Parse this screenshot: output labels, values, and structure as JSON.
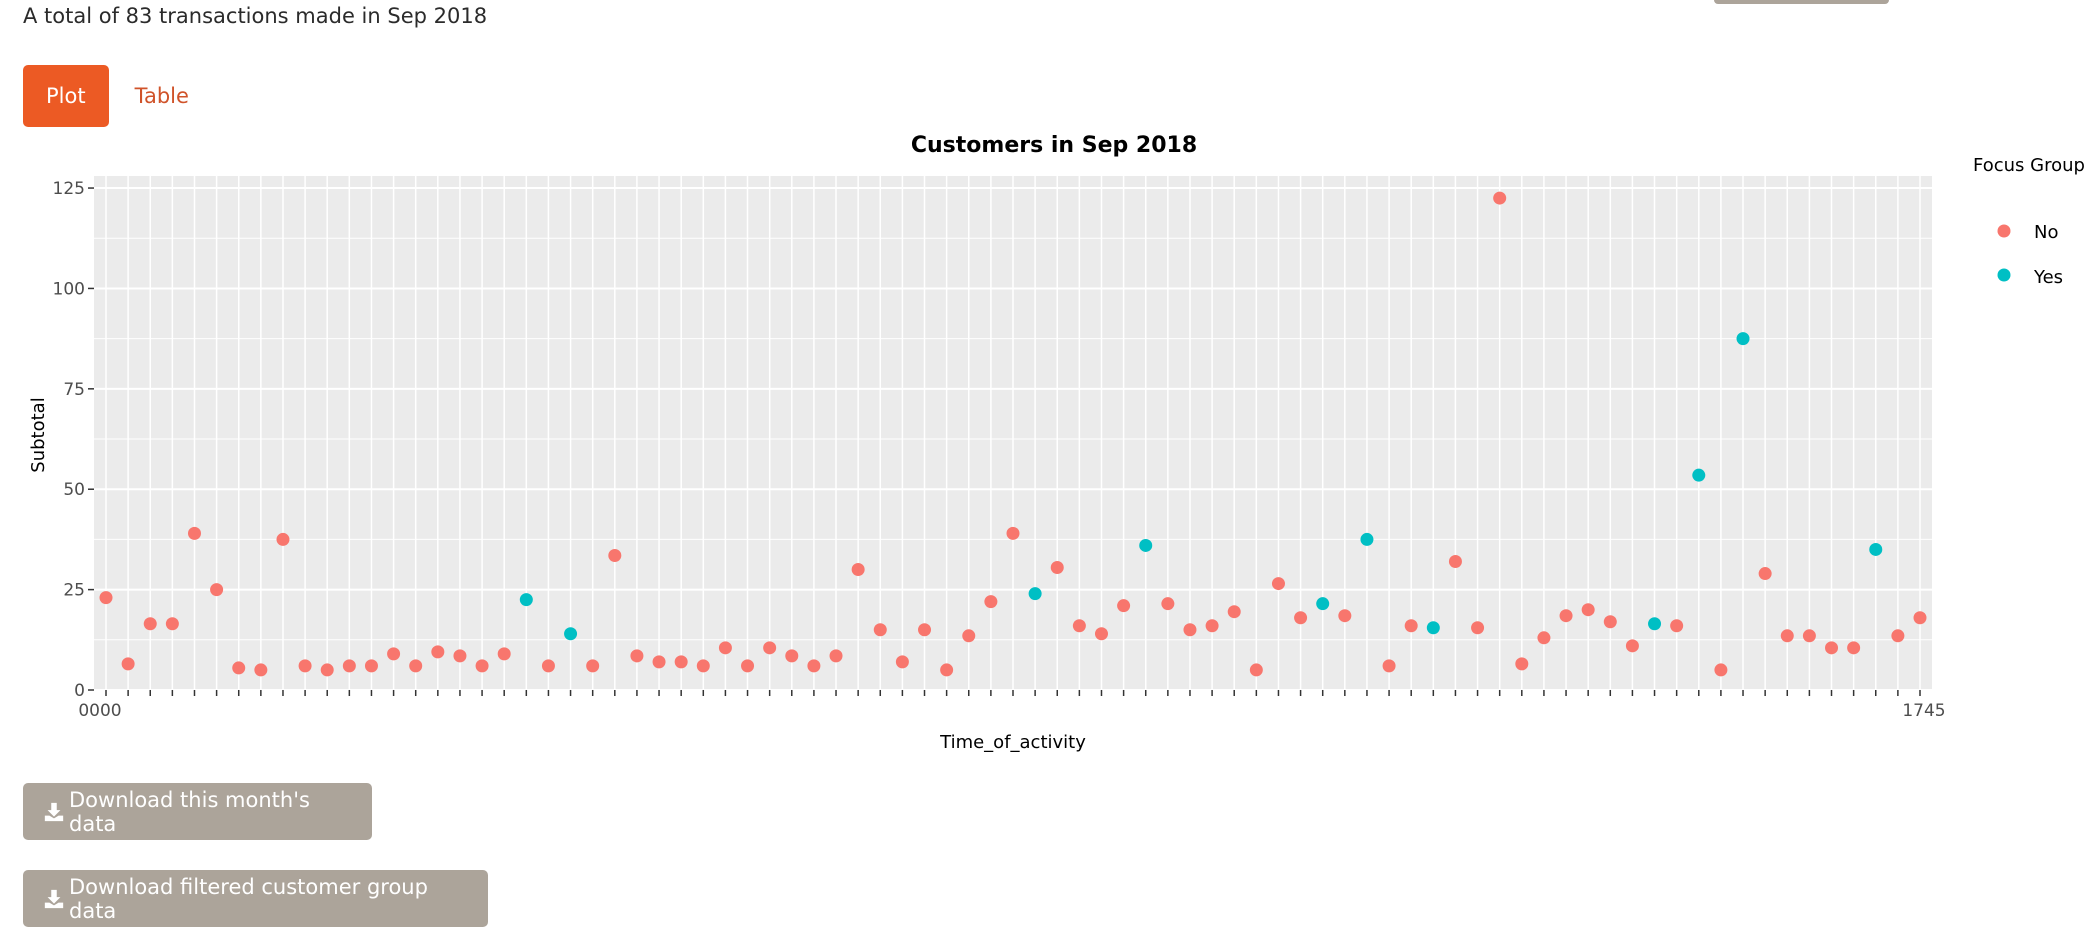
{
  "summary_text": "A total of 83 transactions made in Sep 2018",
  "tabs": [
    {
      "label": "Plot",
      "active": true
    },
    {
      "label": "Table",
      "active": false
    }
  ],
  "buttons": {
    "download_month": "Download this month's data",
    "download_filtered": "Download filtered customer group data",
    "download_icon": "download-icon"
  },
  "colors": {
    "accent": "#ec5a24",
    "tab_link": "#d0532a",
    "button_gray": "#aca49a",
    "panel": "#ebebeb",
    "grid": "#ffffff",
    "series_no": "#f8766d",
    "series_yes": "#00bfc4"
  },
  "chart_data": {
    "type": "scatter",
    "title": "Customers in Sep 2018",
    "xlabel": "Time_of_activity",
    "ylabel": "Subtotal",
    "ylim": [
      0,
      128
    ],
    "yticks": [
      0,
      25,
      50,
      75,
      100,
      125
    ],
    "grid": true,
    "legend": {
      "title": "Focus Group",
      "position": "right",
      "entries": [
        "No",
        "Yes"
      ]
    },
    "x_tick_first": "0000",
    "x_tick_last": "1745",
    "x_category_count": 83,
    "series": [
      {
        "name": "No",
        "points": [
          [
            1,
            23
          ],
          [
            2,
            6.5
          ],
          [
            3,
            16.5
          ],
          [
            4,
            16.5
          ],
          [
            5,
            39
          ],
          [
            6,
            25
          ],
          [
            7,
            5.5
          ],
          [
            8,
            5
          ],
          [
            9,
            37.5
          ],
          [
            10,
            6
          ],
          [
            11,
            5
          ],
          [
            12,
            6
          ],
          [
            13,
            6
          ],
          [
            14,
            9
          ],
          [
            15,
            6
          ],
          [
            16,
            9.5
          ],
          [
            17,
            8.5
          ],
          [
            18,
            6
          ],
          [
            19,
            9
          ],
          [
            21,
            6
          ],
          [
            23,
            6
          ],
          [
            24,
            33.5
          ],
          [
            25,
            8.5
          ],
          [
            26,
            7
          ],
          [
            27,
            7
          ],
          [
            28,
            6
          ],
          [
            29,
            10.5
          ],
          [
            30,
            6
          ],
          [
            31,
            10.5
          ],
          [
            32,
            8.5
          ],
          [
            33,
            6
          ],
          [
            34,
            8.5
          ],
          [
            35,
            30
          ],
          [
            36,
            15
          ],
          [
            37,
            7
          ],
          [
            38,
            15
          ],
          [
            39,
            5
          ],
          [
            40,
            13.5
          ],
          [
            41,
            22
          ],
          [
            42,
            39
          ],
          [
            44,
            30.5
          ],
          [
            45,
            16
          ],
          [
            46,
            14
          ],
          [
            47,
            21
          ],
          [
            49,
            21.5
          ],
          [
            50,
            15
          ],
          [
            51,
            16
          ],
          [
            52,
            19.5
          ],
          [
            53,
            5
          ],
          [
            54,
            26.5
          ],
          [
            55,
            18
          ],
          [
            57,
            18.5
          ],
          [
            59,
            6
          ],
          [
            60,
            16
          ],
          [
            62,
            32
          ],
          [
            63,
            15.5
          ],
          [
            64,
            122.5
          ],
          [
            65,
            6.5
          ],
          [
            66,
            13
          ],
          [
            67,
            18.5
          ],
          [
            68,
            20
          ],
          [
            69,
            17
          ],
          [
            70,
            11
          ],
          [
            72,
            16
          ],
          [
            74,
            5
          ],
          [
            76,
            29
          ],
          [
            77,
            13.5
          ],
          [
            78,
            13.5
          ],
          [
            79,
            10.5
          ],
          [
            80,
            10.5
          ],
          [
            82,
            13.5
          ],
          [
            83,
            18
          ]
        ]
      },
      {
        "name": "Yes",
        "points": [
          [
            20,
            22.5
          ],
          [
            22,
            14
          ],
          [
            43,
            24
          ],
          [
            48,
            36
          ],
          [
            56,
            21.5
          ],
          [
            58,
            37.5
          ],
          [
            61,
            15.5
          ],
          [
            71,
            16.5
          ],
          [
            73,
            53.5
          ],
          [
            75,
            87.5
          ],
          [
            81,
            35
          ]
        ]
      }
    ]
  }
}
